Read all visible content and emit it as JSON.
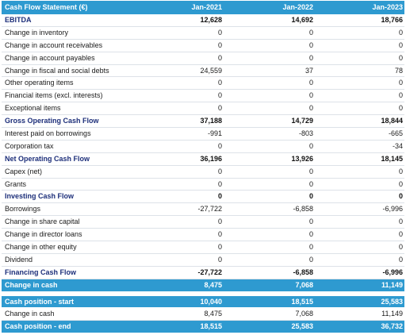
{
  "table": {
    "header": {
      "label": "Cash Flow Statement (€)",
      "cols": [
        "Jan-2021",
        "Jan-2022",
        "Jan-2023"
      ]
    },
    "rows": [
      {
        "label": "EBITDA",
        "v": [
          "12,628",
          "14,692",
          "18,766"
        ],
        "style": "bold"
      },
      {
        "label": "Change in inventory",
        "v": [
          "0",
          "0",
          "0"
        ],
        "style": "normal"
      },
      {
        "label": "Change in account receivables",
        "v": [
          "0",
          "0",
          "0"
        ],
        "style": "normal"
      },
      {
        "label": "Change in account payables",
        "v": [
          "0",
          "0",
          "0"
        ],
        "style": "normal"
      },
      {
        "label": "Change in fiscal and social debts",
        "v": [
          "24,559",
          "37",
          "78"
        ],
        "style": "normal"
      },
      {
        "label": "Other operating items",
        "v": [
          "0",
          "0",
          "0"
        ],
        "style": "normal"
      },
      {
        "label": "Financial items (excl. interests)",
        "v": [
          "0",
          "0",
          "0"
        ],
        "style": "normal"
      },
      {
        "label": "Exceptional items",
        "v": [
          "0",
          "0",
          "0"
        ],
        "style": "normal"
      },
      {
        "label": "Gross Operating Cash Flow",
        "v": [
          "37,188",
          "14,729",
          "18,844"
        ],
        "style": "bold"
      },
      {
        "label": "Interest paid on borrowings",
        "v": [
          "-991",
          "-803",
          "-665"
        ],
        "style": "normal"
      },
      {
        "label": "Corporation tax",
        "v": [
          "0",
          "0",
          "-34"
        ],
        "style": "normal"
      },
      {
        "label": "Net Operating Cash Flow",
        "v": [
          "36,196",
          "13,926",
          "18,145"
        ],
        "style": "bold"
      },
      {
        "label": "Capex (net)",
        "v": [
          "0",
          "0",
          "0"
        ],
        "style": "normal"
      },
      {
        "label": "Grants",
        "v": [
          "0",
          "0",
          "0"
        ],
        "style": "normal"
      },
      {
        "label": "Investing Cash Flow",
        "v": [
          "0",
          "0",
          "0"
        ],
        "style": "bold"
      },
      {
        "label": "Borrowings",
        "v": [
          "-27,722",
          "-6,858",
          "-6,996"
        ],
        "style": "normal"
      },
      {
        "label": "Change in share capital",
        "v": [
          "0",
          "0",
          "0"
        ],
        "style": "normal"
      },
      {
        "label": "Change in director loans",
        "v": [
          "0",
          "0",
          "0"
        ],
        "style": "normal"
      },
      {
        "label": "Change in other equity",
        "v": [
          "0",
          "0",
          "0"
        ],
        "style": "normal"
      },
      {
        "label": "Dividend",
        "v": [
          "0",
          "0",
          "0"
        ],
        "style": "normal"
      },
      {
        "label": "Financing Cash Flow",
        "v": [
          "-27,722",
          "-6,858",
          "-6,996"
        ],
        "style": "bold"
      },
      {
        "label": "Change in cash",
        "v": [
          "8,475",
          "7,068",
          "11,149"
        ],
        "style": "blue"
      }
    ],
    "summary": [
      {
        "label": "Cash position - start",
        "v": [
          "10,040",
          "18,515",
          "25,583"
        ],
        "style": "blue"
      },
      {
        "label": "Change in cash",
        "v": [
          "8,475",
          "7,068",
          "11,149"
        ],
        "style": "normal"
      },
      {
        "label": "Cash position - end",
        "v": [
          "18,515",
          "25,583",
          "36,732"
        ],
        "style": "blue"
      }
    ]
  },
  "colors": {
    "header_bg": "#2e9ad0",
    "bold_label": "#1d2f7a"
  }
}
